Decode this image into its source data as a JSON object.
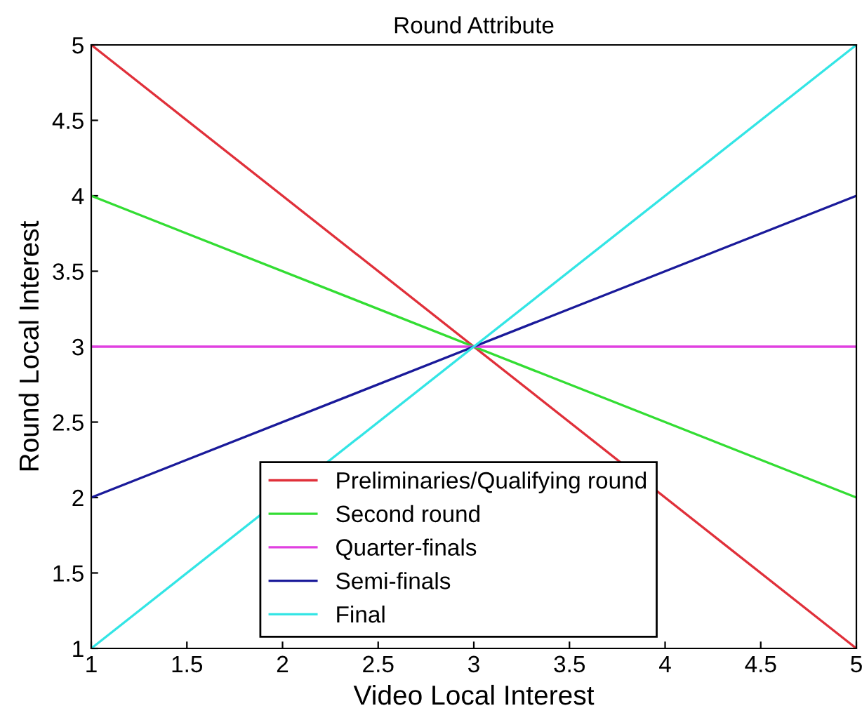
{
  "chart_data": {
    "type": "line",
    "title": "Round Attribute",
    "xlabel": "Video Local Interest",
    "ylabel": "Round Local Interest",
    "x": [
      1,
      5
    ],
    "series": [
      {
        "name": "Preliminaries/Qualifying round",
        "color": "#e0303a",
        "values": [
          5,
          1
        ]
      },
      {
        "name": "Second round",
        "color": "#33dd33",
        "values": [
          4,
          2
        ]
      },
      {
        "name": "Quarter-finals",
        "color": "#e040e0",
        "values": [
          3,
          3
        ]
      },
      {
        "name": "Semi-finals",
        "color": "#1a1a9a",
        "values": [
          2,
          4
        ]
      },
      {
        "name": "Final",
        "color": "#33e5e5",
        "values": [
          1,
          5
        ]
      }
    ],
    "xlim": [
      1,
      5
    ],
    "ylim": [
      1,
      5
    ],
    "xticks": [
      1,
      1.5,
      2,
      2.5,
      3,
      3.5,
      4,
      4.5,
      5
    ],
    "yticks": [
      1,
      1.5,
      2,
      2.5,
      3,
      3.5,
      4,
      4.5,
      5
    ],
    "grid": false,
    "legend": "bottom",
    "marker": "none",
    "line_style": "solid"
  }
}
